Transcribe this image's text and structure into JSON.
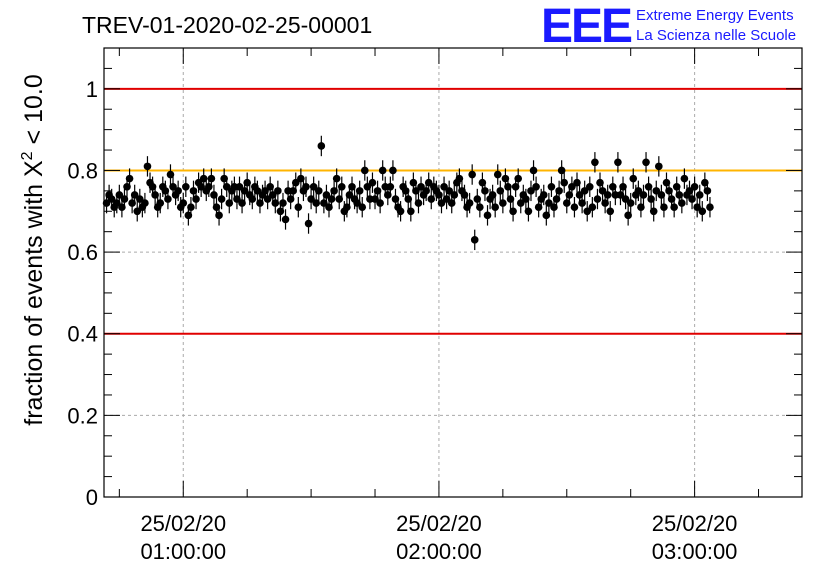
{
  "chart_data": {
    "type": "scatter",
    "title": "TREV-01-2020-02-25-00001",
    "ylabel_prefix": "fraction of events with ",
    "ylabel_symbol": "X",
    "ylabel_exp": "2",
    "ylabel_suffix": " < 10.0",
    "ylim": [
      0,
      1.1
    ],
    "xlim_hours": [
      0.69,
      3.42
    ],
    "y_ticks": [
      {
        "value": 0,
        "label": "0"
      },
      {
        "value": 0.2,
        "label": "0.2"
      },
      {
        "value": 0.4,
        "label": "0.4"
      },
      {
        "value": 0.6,
        "label": "0.6"
      },
      {
        "value": 0.8,
        "label": "0.8"
      },
      {
        "value": 1,
        "label": "1"
      }
    ],
    "x_ticks": [
      {
        "hour": 1,
        "date": "25/02/20",
        "time": "01:00:00"
      },
      {
        "hour": 2,
        "date": "25/02/20",
        "time": "02:00:00"
      },
      {
        "hour": 3,
        "date": "25/02/20",
        "time": "03:00:00"
      }
    ],
    "grid": true,
    "reference_lines": [
      {
        "value": 1.0,
        "color": "#e00000"
      },
      {
        "value": 0.4,
        "color": "#e00000"
      },
      {
        "value": 0.8,
        "color": "#ffb400"
      }
    ],
    "series": [
      {
        "x_start_hour": 0.7,
        "x_step_hour": 0.01,
        "error": 0.025,
        "values": [
          0.72,
          0.74,
          0.73,
          0.71,
          0.72,
          0.74,
          0.71,
          0.73,
          0.76,
          0.78,
          0.72,
          0.74,
          0.7,
          0.73,
          0.71,
          0.72,
          0.81,
          0.77,
          0.76,
          0.74,
          0.71,
          0.72,
          0.76,
          0.75,
          0.73,
          0.79,
          0.76,
          0.74,
          0.75,
          0.71,
          0.72,
          0.76,
          0.69,
          0.71,
          0.75,
          0.73,
          0.77,
          0.76,
          0.78,
          0.75,
          0.76,
          0.78,
          0.74,
          0.71,
          0.69,
          0.73,
          0.78,
          0.76,
          0.72,
          0.75,
          0.76,
          0.73,
          0.76,
          0.72,
          0.75,
          0.77,
          0.74,
          0.73,
          0.76,
          0.75,
          0.72,
          0.74,
          0.75,
          0.73,
          0.76,
          0.74,
          0.72,
          0.75,
          0.7,
          0.72,
          0.68,
          0.75,
          0.73,
          0.75,
          0.77,
          0.71,
          0.78,
          0.75,
          0.76,
          0.67,
          0.73,
          0.76,
          0.72,
          0.75,
          0.86,
          0.72,
          0.74,
          0.71,
          0.73,
          0.75,
          0.78,
          0.73,
          0.76,
          0.7,
          0.71,
          0.74,
          0.76,
          0.73,
          0.72,
          0.75,
          0.71,
          0.8,
          0.76,
          0.73,
          0.77,
          0.73,
          0.75,
          0.72,
          0.8,
          0.76,
          0.74,
          0.76,
          0.8,
          0.73,
          0.71,
          0.7,
          0.76,
          0.75,
          0.73,
          0.7,
          0.77,
          0.75,
          0.72,
          0.76,
          0.74,
          0.75,
          0.77,
          0.73,
          0.76,
          0.75,
          0.74,
          0.72,
          0.76,
          0.73,
          0.75,
          0.72,
          0.74,
          0.77,
          0.78,
          0.75,
          0.74,
          0.71,
          0.72,
          0.79,
          0.76,
          0.73,
          0.71,
          0.77,
          0.75,
          0.69,
          0.73,
          0.74,
          0.71,
          0.79,
          0.75,
          0.72,
          0.78,
          0.76,
          0.73,
          0.7,
          0.76,
          0.78,
          0.72,
          0.74,
          0.73,
          0.7,
          0.75,
          0.8,
          0.76,
          0.71,
          0.73,
          0.74,
          0.69,
          0.72,
          0.76,
          0.71,
          0.73,
          0.75,
          0.8,
          0.77,
          0.72,
          0.74,
          0.76,
          0.71,
          0.77,
          0.74,
          0.72,
          0.75,
          0.7,
          0.76,
          0.71,
          0.82,
          0.73,
          0.77,
          0.75,
          0.72,
          0.74,
          0.7,
          0.76,
          0.74,
          0.82,
          0.74,
          0.76,
          0.73,
          0.69,
          0.72,
          0.78,
          0.74,
          0.75,
          0.71,
          0.74,
          0.82,
          0.76,
          0.73,
          0.7,
          0.75,
          0.81,
          0.74,
          0.71,
          0.77,
          0.75,
          0.73,
          0.71,
          0.76,
          0.74,
          0.72,
          0.78,
          0.74,
          0.75,
          0.73,
          0.76,
          0.71,
          0.74,
          0.7,
          0.77,
          0.75,
          0.71
        ]
      }
    ],
    "outliers": [
      {
        "index": 144,
        "value": 0.63
      }
    ]
  },
  "logo": {
    "mark": "EEE",
    "line1": "Extreme Energy Events",
    "line2": "La Scienza nelle Scuole"
  }
}
